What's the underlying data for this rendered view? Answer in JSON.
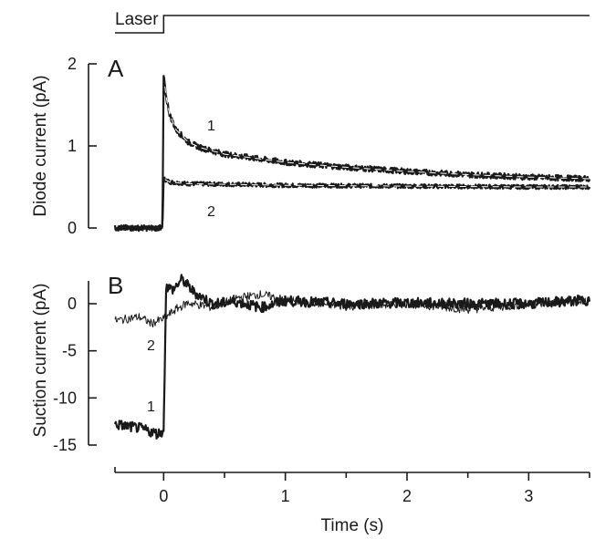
{
  "chart_data": [
    {
      "panel": "A",
      "type": "line",
      "ylabel": "Diode current (pA)",
      "xlim": [
        -0.4,
        3.5
      ],
      "ylim": [
        0,
        2
      ],
      "y_ticks": [
        0,
        1,
        2
      ],
      "grid": false,
      "stimulus": {
        "label": "Laser",
        "onset_s": 0
      },
      "series": [
        {
          "name": "1",
          "x": [
            -0.4,
            -0.01,
            0.0,
            0.02,
            0.05,
            0.1,
            0.2,
            0.3,
            0.5,
            1.0,
            1.5,
            2.0,
            2.5,
            3.0,
            3.5
          ],
          "y": [
            0.0,
            0.0,
            1.85,
            1.6,
            1.38,
            1.2,
            1.05,
            0.98,
            0.9,
            0.8,
            0.74,
            0.69,
            0.65,
            0.62,
            0.6
          ]
        },
        {
          "name": "2",
          "x": [
            -0.4,
            -0.01,
            0.0,
            0.05,
            0.2,
            1.0,
            2.0,
            3.0,
            3.5
          ],
          "y": [
            0.0,
            0.0,
            0.6,
            0.56,
            0.54,
            0.52,
            0.51,
            0.5,
            0.5
          ]
        }
      ]
    },
    {
      "panel": "B",
      "type": "line",
      "xlabel": "Time (s)",
      "ylabel": "Suction current (pA)",
      "xlim": [
        -0.4,
        3.5
      ],
      "ylim": [
        -15,
        2
      ],
      "x_ticks": [
        0,
        1,
        2,
        3
      ],
      "y_ticks": [
        -15,
        -10,
        -5,
        0
      ],
      "grid": false,
      "series": [
        {
          "name": "1",
          "x": [
            -0.4,
            -0.2,
            -0.05,
            0.0,
            0.02,
            0.08,
            0.15,
            0.25,
            0.4,
            0.6,
            0.8,
            1.0,
            1.5,
            2.0,
            2.5,
            3.0,
            3.5
          ],
          "y": [
            -12.8,
            -13.2,
            -13.8,
            -13.5,
            1.8,
            1.5,
            2.6,
            1.2,
            0.0,
            0.2,
            -0.4,
            0.3,
            0.0,
            0.1,
            0.0,
            0.0,
            0.4
          ]
        },
        {
          "name": "2",
          "x": [
            -0.4,
            -0.2,
            -0.1,
            0.0,
            0.1,
            0.2,
            0.4,
            0.6,
            0.8,
            1.0,
            1.5,
            2.0,
            2.5,
            3.0,
            3.5
          ],
          "y": [
            -1.8,
            -1.4,
            -2.1,
            -1.6,
            -0.6,
            0.1,
            -0.4,
            0.6,
            1.0,
            0.4,
            -0.3,
            0.0,
            -0.6,
            -0.1,
            0.3
          ]
        }
      ]
    }
  ]
}
